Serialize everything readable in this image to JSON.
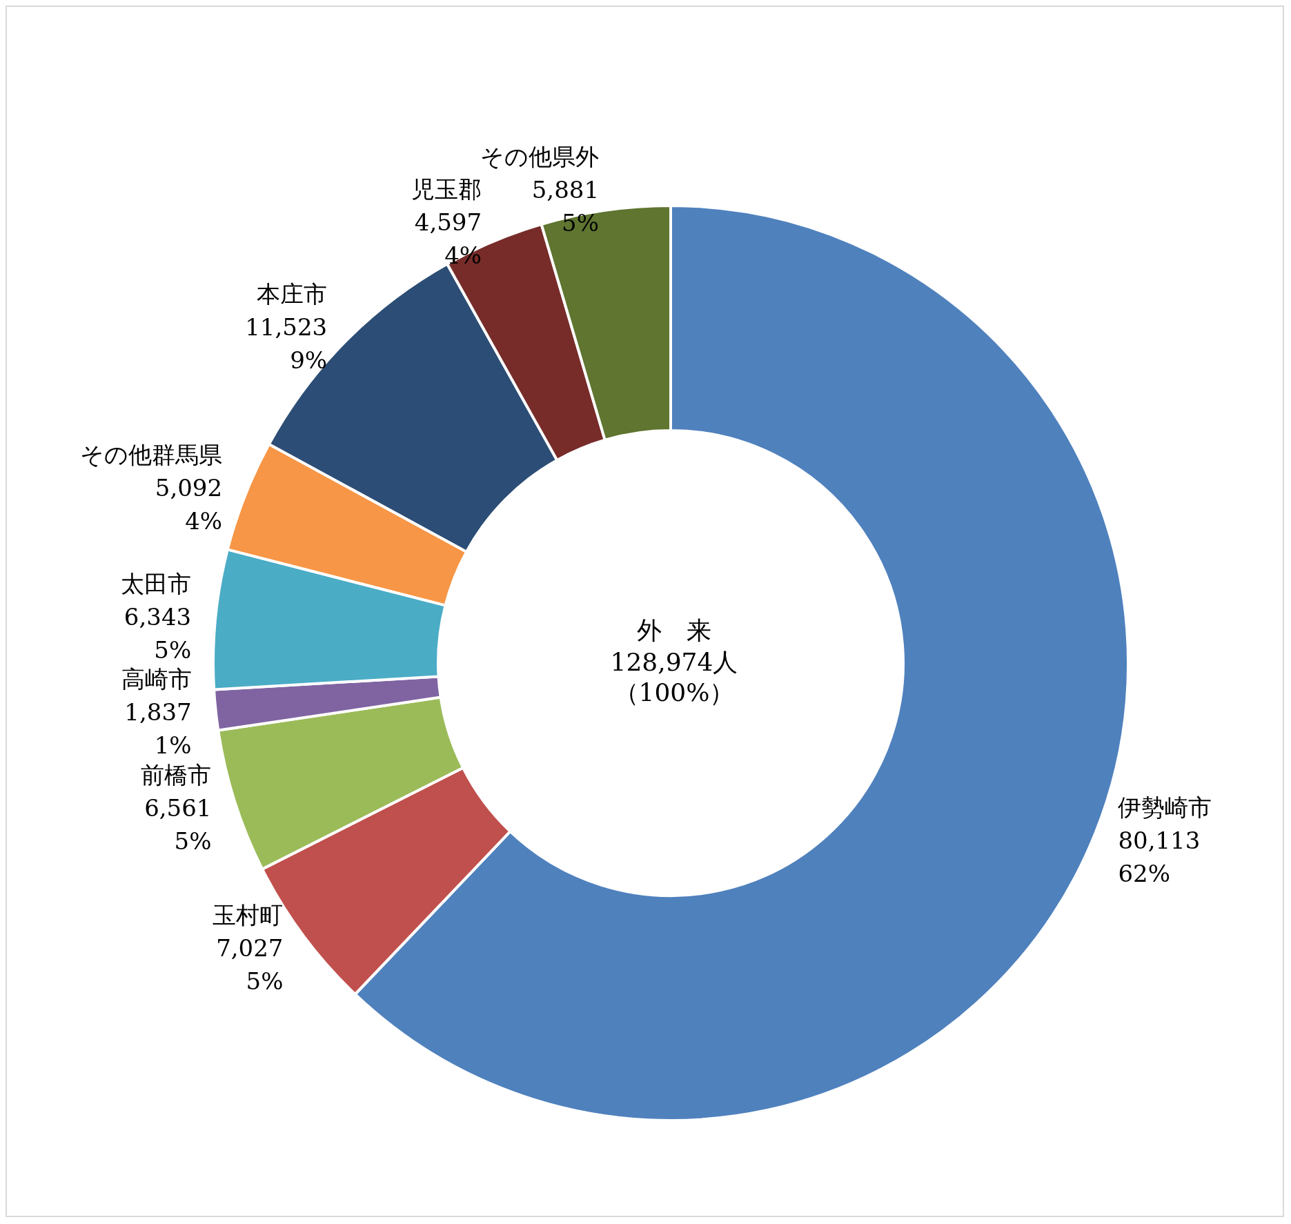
{
  "chart_data": {
    "type": "donut",
    "title": "外　来",
    "annotations": [
      "128,974人",
      "（100%）"
    ],
    "categories": [
      "伊勢崎市",
      "玉村町",
      "前橋市",
      "高崎市",
      "太田市",
      "その他群馬県",
      "本庄市",
      "児玉郡",
      "その他県外"
    ],
    "values": [
      80113,
      7027,
      6561,
      1837,
      6343,
      5092,
      11523,
      4597,
      5881
    ],
    "value_labels": [
      "80,113\n62%",
      "7,027\n5%",
      "6,561\n5%",
      "1,837\n1%",
      "6,343\n5%",
      "5,092\n4%",
      "11,523\n9%",
      "4,597\n4%",
      "5,881\n5%"
    ],
    "colors": [
      "#4f81bd",
      "#c0504d",
      "#9bbb59",
      "#8064a2",
      "#4bacc6",
      "#f79646",
      "#2c4d75",
      "#772c2a",
      "#5f7530"
    ],
    "legend": false
  }
}
